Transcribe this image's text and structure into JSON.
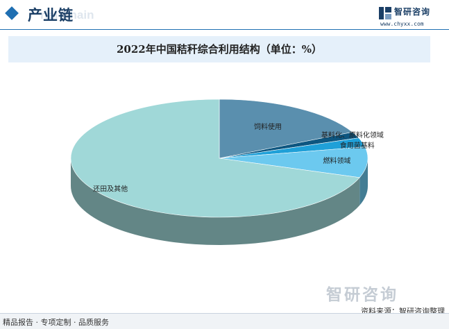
{
  "header": {
    "section_title": "产业链",
    "ghost_text": "rial Chain",
    "logo_name": "智研咨询",
    "logo_url": "www.chyxx.com"
  },
  "colors": {
    "accent": "#1f6fb2",
    "title_band": "#e5f0fa"
  },
  "chart_data": {
    "type": "pie",
    "title": "2022年中国秸秆综合利用结构（单位：%）",
    "style": "3d",
    "slices": [
      {
        "label": "饲料使用",
        "value": 17.7,
        "color": "#5a8fae"
      },
      {
        "label": "基料化、原料化领域",
        "value": 1.7,
        "color": "#0d5680"
      },
      {
        "label": "食用菌基料",
        "value": 2.5,
        "color": "#1fa0d8"
      },
      {
        "label": "燃料领域",
        "value": 8.4,
        "color": "#6cc9ef"
      },
      {
        "label": "还田及其他",
        "value": 69.7,
        "color": "#a0d8d8"
      }
    ]
  },
  "footer": {
    "slogan": "精品报告 · 专项定制 · 品质服务",
    "source": "资料来源：智研咨询整理",
    "watermark": "智研咨询"
  }
}
